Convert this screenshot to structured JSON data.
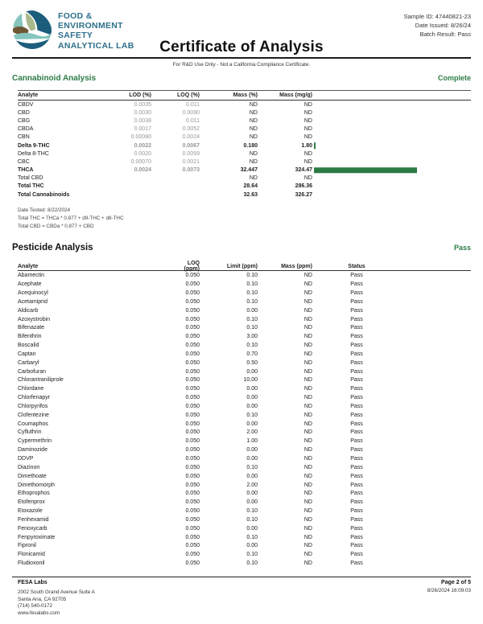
{
  "title": "Certificate of Analysis",
  "disclaimer": "For R&D Use Only - Not a California Compliance Certificate.",
  "logo_text": [
    "FOOD &",
    "ENVIRONMENT",
    "SAFETY",
    "ANALYTICAL LAB"
  ],
  "meta": {
    "sample_id": "Sample ID: 47440821-23",
    "date_issued": "Date Issued: 8/26/24",
    "batch_result": "Batch Result: Pass"
  },
  "colors": {
    "accent_green": "#2e7d46",
    "bar_green": "#2b7a44",
    "brand_blue": "#2d6f8b"
  },
  "cannabinoid": {
    "section_title": "Cannabinoid Analysis",
    "status": "Complete",
    "columns": [
      "Analyte",
      "LOD (%)",
      "LOQ (%)",
      "Mass (%)",
      "Mass (mg/g)"
    ],
    "rows": [
      {
        "analyte": "CBDV",
        "lod": "0.0035",
        "loq": "0.011",
        "mass_pct": "ND",
        "mass_mgg": "ND"
      },
      {
        "analyte": "CBD",
        "lod": "0.0030",
        "loq": "0.0090",
        "mass_pct": "ND",
        "mass_mgg": "ND"
      },
      {
        "analyte": "CBG",
        "lod": "0.0038",
        "loq": "0.011",
        "mass_pct": "ND",
        "mass_mgg": "ND"
      },
      {
        "analyte": "CBDA",
        "lod": "0.0017",
        "loq": "0.0052",
        "mass_pct": "ND",
        "mass_mgg": "ND"
      },
      {
        "analyte": "CBN",
        "lod": "0.00080",
        "loq": "0.0024",
        "mass_pct": "ND",
        "mass_mgg": "ND"
      },
      {
        "analyte": "Delta 9-THC",
        "lod": "0.0022",
        "loq": "0.0067",
        "mass_pct": "0.180",
        "mass_mgg": "1.80",
        "emphasis": true,
        "bar": 1.8
      },
      {
        "analyte": "Delta 8-THC",
        "lod": "0.0020",
        "loq": "0.0059",
        "mass_pct": "ND",
        "mass_mgg": "ND"
      },
      {
        "analyte": "CBC",
        "lod": "0.00070",
        "loq": "0.0021",
        "mass_pct": "ND",
        "mass_mgg": "ND"
      },
      {
        "analyte": "THCA",
        "lod": "0.0024",
        "loq": "0.0073",
        "mass_pct": "32.447",
        "mass_mgg": "324.47",
        "emphasis": true,
        "bar": 324.47
      },
      {
        "analyte": "Total CBD",
        "lod": "",
        "loq": "",
        "mass_pct": "ND",
        "mass_mgg": "ND"
      },
      {
        "analyte": "Total THC",
        "lod": "",
        "loq": "",
        "mass_pct": "28.64",
        "mass_mgg": "286.36",
        "emphasis": true
      },
      {
        "analyte": "Total Cannabinoids",
        "lod": "",
        "loq": "",
        "mass_pct": "32.63",
        "mass_mgg": "326.27",
        "emphasis": true
      }
    ],
    "bar_max_value": 324.47,
    "footnotes": [
      "Date Tested: 8/22/2024",
      "Total THC = THCa * 0.877 + d9-THC + d8-THC",
      "Total CBD = CBDa * 0.877 + CBD"
    ]
  },
  "pesticide": {
    "section_title": "Pesticide Analysis",
    "status": "Pass",
    "columns": [
      "Analyte",
      "LOQ (ppm)",
      "Limit (ppm)",
      "Mass (ppm)",
      "Status"
    ],
    "rows": [
      {
        "analyte": "Abamectin",
        "loq": "0.050",
        "limit": "0.10",
        "mass": "ND",
        "status": "Pass"
      },
      {
        "analyte": "Acephate",
        "loq": "0.050",
        "limit": "0.10",
        "mass": "ND",
        "status": "Pass"
      },
      {
        "analyte": "Acequinocyl",
        "loq": "0.050",
        "limit": "0.10",
        "mass": "ND",
        "status": "Pass"
      },
      {
        "analyte": "Acetamiprid",
        "loq": "0.050",
        "limit": "0.10",
        "mass": "ND",
        "status": "Pass"
      },
      {
        "analyte": "Aldicarb",
        "loq": "0.050",
        "limit": "0.00",
        "mass": "ND",
        "status": "Pass"
      },
      {
        "analyte": "Azoxystrobin",
        "loq": "0.050",
        "limit": "0.10",
        "mass": "ND",
        "status": "Pass"
      },
      {
        "analyte": "Bifenazate",
        "loq": "0.050",
        "limit": "0.10",
        "mass": "ND",
        "status": "Pass"
      },
      {
        "analyte": "Bifenthrin",
        "loq": "0.050",
        "limit": "3.00",
        "mass": "ND",
        "status": "Pass"
      },
      {
        "analyte": "Boscalid",
        "loq": "0.050",
        "limit": "0.10",
        "mass": "ND",
        "status": "Pass"
      },
      {
        "analyte": "Captan",
        "loq": "0.050",
        "limit": "0.70",
        "mass": "ND",
        "status": "Pass"
      },
      {
        "analyte": "Carbaryl",
        "loq": "0.050",
        "limit": "0.50",
        "mass": "ND",
        "status": "Pass"
      },
      {
        "analyte": "Carbofuran",
        "loq": "0.050",
        "limit": "0.00",
        "mass": "ND",
        "status": "Pass"
      },
      {
        "analyte": "Chlorantraniliprole",
        "loq": "0.050",
        "limit": "10.00",
        "mass": "ND",
        "status": "Pass"
      },
      {
        "analyte": "Chlordane",
        "loq": "0.050",
        "limit": "0.00",
        "mass": "ND",
        "status": "Pass"
      },
      {
        "analyte": "Chlorfenapyr",
        "loq": "0.050",
        "limit": "0.00",
        "mass": "ND",
        "status": "Pass"
      },
      {
        "analyte": "Chlorpyrifos",
        "loq": "0.050",
        "limit": "0.00",
        "mass": "ND",
        "status": "Pass"
      },
      {
        "analyte": "Clofentezine",
        "loq": "0.050",
        "limit": "0.10",
        "mass": "ND",
        "status": "Pass"
      },
      {
        "analyte": "Coumaphos",
        "loq": "0.050",
        "limit": "0.00",
        "mass": "ND",
        "status": "Pass"
      },
      {
        "analyte": "Cyfluthrin",
        "loq": "0.050",
        "limit": "2.00",
        "mass": "ND",
        "status": "Pass"
      },
      {
        "analyte": "Cypermethrin",
        "loq": "0.050",
        "limit": "1.00",
        "mass": "ND",
        "status": "Pass"
      },
      {
        "analyte": "Daminozide",
        "loq": "0.050",
        "limit": "0.00",
        "mass": "ND",
        "status": "Pass"
      },
      {
        "analyte": "DDVP",
        "loq": "0.050",
        "limit": "0.00",
        "mass": "ND",
        "status": "Pass"
      },
      {
        "analyte": "Diazinon",
        "loq": "0.050",
        "limit": "0.10",
        "mass": "ND",
        "status": "Pass"
      },
      {
        "analyte": "Dimethoate",
        "loq": "0.050",
        "limit": "0.00",
        "mass": "ND",
        "status": "Pass"
      },
      {
        "analyte": "Dimethomorph",
        "loq": "0.050",
        "limit": "2.00",
        "mass": "ND",
        "status": "Pass"
      },
      {
        "analyte": "Ethoprophos",
        "loq": "0.050",
        "limit": "0.00",
        "mass": "ND",
        "status": "Pass"
      },
      {
        "analyte": "Etofenprox",
        "loq": "0.050",
        "limit": "0.00",
        "mass": "ND",
        "status": "Pass"
      },
      {
        "analyte": "Etoxazole",
        "loq": "0.050",
        "limit": "0.10",
        "mass": "ND",
        "status": "Pass"
      },
      {
        "analyte": "Fenhexamid",
        "loq": "0.050",
        "limit": "0.10",
        "mass": "ND",
        "status": "Pass"
      },
      {
        "analyte": "Fenoxycarb",
        "loq": "0.050",
        "limit": "0.00",
        "mass": "ND",
        "status": "Pass"
      },
      {
        "analyte": "Fenpyroximate",
        "loq": "0.050",
        "limit": "0.10",
        "mass": "ND",
        "status": "Pass"
      },
      {
        "analyte": "Fipronil",
        "loq": "0.050",
        "limit": "0.00",
        "mass": "ND",
        "status": "Pass"
      },
      {
        "analyte": "Flonicamid",
        "loq": "0.050",
        "limit": "0.10",
        "mass": "ND",
        "status": "Pass"
      },
      {
        "analyte": "Fludioxonil",
        "loq": "0.050",
        "limit": "0.10",
        "mass": "ND",
        "status": "Pass"
      }
    ]
  },
  "footer": {
    "lab_name": "FESA Labs",
    "address": [
      "2002 South Grand Avenue Suite A",
      "Santa Ana, CA 92705",
      "(714) 540-0172",
      "www.fesalabs.com"
    ],
    "page": "Page 2 of 5",
    "datetime": "8/26/2024 16:09:03"
  }
}
